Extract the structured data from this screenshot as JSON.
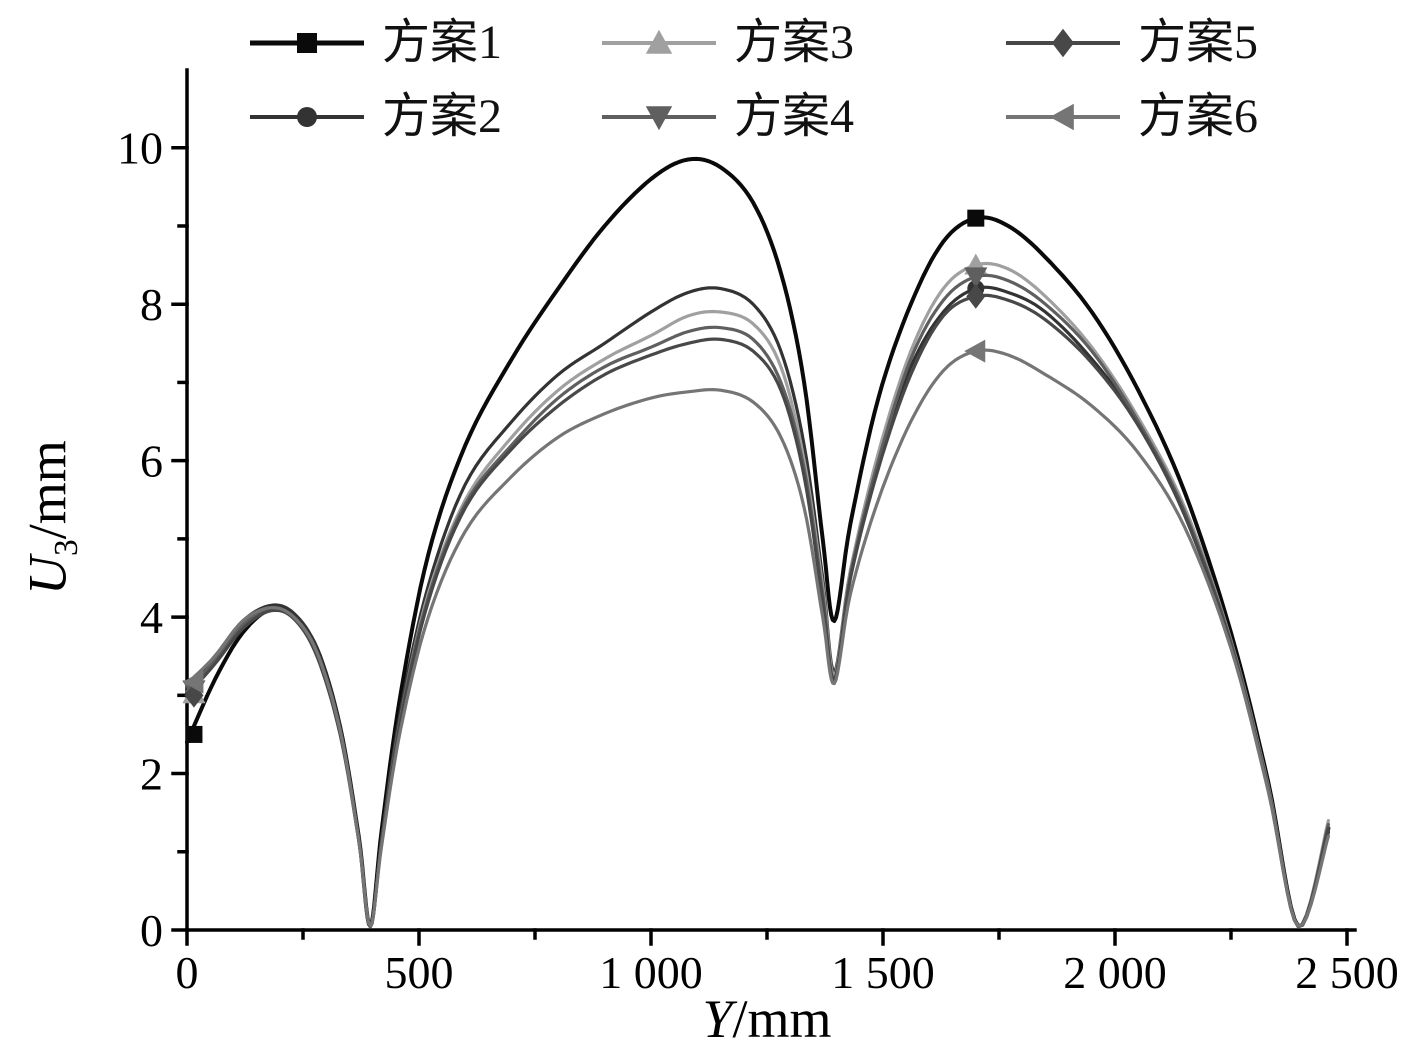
{
  "figure": {
    "background": "#ffffff",
    "axis_color": "#000000"
  },
  "axes": {
    "xlabel_italic": "Y",
    "xlabel_rest": "/mm",
    "ylabel_italic": "U",
    "ylabel_sub": "3",
    "ylabel_rest": "/mm"
  },
  "chart_data": {
    "type": "line",
    "title": "",
    "xlabel": "Y/mm",
    "ylabel": "U3/mm",
    "xlim": [
      0,
      2500
    ],
    "ylim": [
      0,
      10.93
    ],
    "grid": false,
    "legend_position": "top",
    "x_major_ticks": [
      0,
      500,
      1000,
      1500,
      2000,
      2500
    ],
    "x_tick_labels": [
      "0",
      "500",
      "1 000",
      "1 500",
      "2 000",
      "2 500"
    ],
    "x_minor_ticks": [
      250,
      750,
      1250,
      1750,
      2250
    ],
    "y_major_ticks": [
      0,
      2,
      4,
      6,
      8,
      10
    ],
    "y_tick_labels": [
      "0",
      "2",
      "4",
      "6",
      "8",
      "10"
    ],
    "y_minor_ticks": [
      1,
      3,
      5,
      7,
      9
    ],
    "x": [
      0,
      60,
      120,
      180,
      230,
      280,
      330,
      370,
      395,
      420,
      460,
      520,
      600,
      700,
      800,
      900,
      1000,
      1080,
      1150,
      1220,
      1280,
      1330,
      1370,
      1395,
      1430,
      1490,
      1560,
      1630,
      1700,
      1770,
      1850,
      1950,
      2050,
      2150,
      2250,
      2330,
      2395,
      2460
    ],
    "series": [
      {
        "name": "方案1",
        "color": "#0a0a0a",
        "width": 4,
        "marker": "square",
        "marker_size": 17,
        "marker_points": [
          [
            15,
            2.5
          ],
          [
            1700,
            9.1
          ]
        ],
        "values": [
          2.4,
          3.2,
          3.8,
          4.1,
          4.0,
          3.6,
          2.6,
          1.2,
          0.05,
          1.3,
          3.0,
          4.8,
          6.2,
          7.3,
          8.2,
          9.0,
          9.6,
          9.85,
          9.75,
          9.3,
          8.4,
          7.0,
          5.0,
          3.95,
          5.2,
          6.8,
          8.0,
          8.8,
          9.1,
          9.0,
          8.6,
          7.9,
          6.9,
          5.6,
          3.8,
          1.9,
          0.05,
          1.3
        ]
      },
      {
        "name": "方案2",
        "color": "#333333",
        "width": 3.2,
        "marker": "circle",
        "marker_size": 17,
        "marker_points": [
          [
            15,
            3.12
          ],
          [
            1700,
            8.2
          ]
        ],
        "values": [
          3.1,
          3.5,
          3.95,
          4.15,
          4.05,
          3.6,
          2.6,
          1.2,
          0.05,
          1.2,
          2.8,
          4.4,
          5.7,
          6.5,
          7.1,
          7.5,
          7.9,
          8.15,
          8.2,
          8.0,
          7.4,
          6.2,
          4.5,
          3.3,
          4.6,
          6.0,
          7.2,
          7.9,
          8.2,
          8.15,
          7.9,
          7.3,
          6.5,
          5.4,
          3.7,
          1.85,
          0.05,
          1.25
        ]
      },
      {
        "name": "方案3",
        "color": "#a0a0a0",
        "width": 3.2,
        "marker": "triangle-up",
        "marker_size": 21,
        "marker_points": [
          [
            15,
            3.02
          ],
          [
            1700,
            8.5
          ]
        ],
        "values": [
          3.0,
          3.45,
          3.9,
          4.1,
          4.0,
          3.55,
          2.55,
          1.15,
          0.05,
          1.15,
          2.7,
          4.3,
          5.5,
          6.3,
          6.9,
          7.3,
          7.6,
          7.85,
          7.9,
          7.75,
          7.2,
          6.0,
          4.4,
          3.25,
          4.6,
          6.1,
          7.4,
          8.2,
          8.5,
          8.45,
          8.1,
          7.45,
          6.55,
          5.4,
          3.7,
          1.85,
          0.05,
          1.4
        ]
      },
      {
        "name": "方案4",
        "color": "#5f5f5f",
        "width": 3.2,
        "marker": "triangle-down",
        "marker_size": 21,
        "marker_points": [
          [
            15,
            3.07
          ],
          [
            1700,
            8.35
          ]
        ],
        "values": [
          3.05,
          3.45,
          3.9,
          4.1,
          4.0,
          3.55,
          2.55,
          1.15,
          0.05,
          1.15,
          2.7,
          4.25,
          5.45,
          6.2,
          6.8,
          7.2,
          7.45,
          7.65,
          7.7,
          7.55,
          7.0,
          5.9,
          4.3,
          3.2,
          4.55,
          6.0,
          7.3,
          8.05,
          8.35,
          8.3,
          8.0,
          7.4,
          6.5,
          5.35,
          3.68,
          1.83,
          0.05,
          1.35
        ]
      },
      {
        "name": "方案5",
        "color": "#484848",
        "width": 3.2,
        "marker": "diamond",
        "marker_size": 19,
        "marker_points": [
          [
            15,
            3.0
          ],
          [
            1700,
            8.1
          ]
        ],
        "values": [
          3.0,
          3.4,
          3.85,
          4.08,
          3.98,
          3.5,
          2.5,
          1.15,
          0.05,
          1.15,
          2.65,
          4.2,
          5.4,
          6.15,
          6.7,
          7.1,
          7.35,
          7.5,
          7.55,
          7.4,
          6.9,
          5.8,
          4.2,
          3.2,
          4.5,
          5.9,
          7.1,
          7.85,
          8.1,
          8.05,
          7.8,
          7.25,
          6.45,
          5.3,
          3.65,
          1.8,
          0.05,
          1.3
        ]
      },
      {
        "name": "方案6",
        "color": "#757575",
        "width": 3.2,
        "marker": "triangle-left",
        "marker_size": 21,
        "marker_points": [
          [
            15,
            3.17
          ],
          [
            1700,
            7.4
          ]
        ],
        "values": [
          3.15,
          3.5,
          3.95,
          4.12,
          4.0,
          3.55,
          2.55,
          1.15,
          0.05,
          1.1,
          2.55,
          4.0,
          5.1,
          5.8,
          6.3,
          6.6,
          6.8,
          6.88,
          6.9,
          6.75,
          6.3,
          5.4,
          4.0,
          3.15,
          4.3,
          5.5,
          6.5,
          7.15,
          7.4,
          7.35,
          7.1,
          6.7,
          6.1,
          5.15,
          3.6,
          1.78,
          0.05,
          1.2
        ]
      }
    ]
  }
}
